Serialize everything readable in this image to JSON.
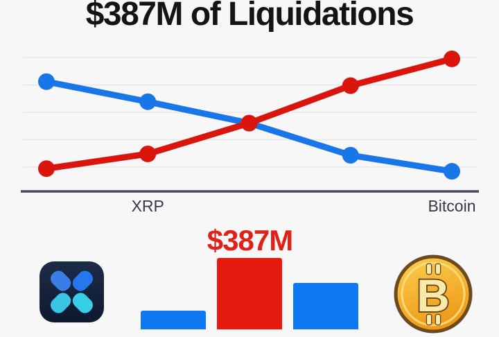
{
  "title": "$387M of Liquidations",
  "labels": {
    "x_axis_left": "XRP",
    "x_axis_right": "Bitcoin",
    "bar_value": "$387M"
  },
  "colors": {
    "background": "#f7f7f8",
    "title_text": "#141414",
    "grid_line": "#e7e7ea",
    "axis_line": "#414b59",
    "axis_label_text": "#333a45",
    "xrp_line": "#1876e8",
    "bitcoin_line": "#da150d",
    "bar_blue": "#0d78f2",
    "bar_red": "#e5190e",
    "value_label": "#e02117",
    "coin_gold_light": "#fbd04f",
    "coin_gold": "#ef9a18",
    "coin_outline": "#6b4a1e",
    "coin_inner_ring": "#f8df8a",
    "coin_symbol_fill": "#fbe9a8",
    "coin_symbol_outline": "#5f3f17",
    "app_icon_bg_top": "#1d2c47",
    "app_icon_bg_bottom": "#0d1930",
    "app_petal_top_left": "#3a7de6",
    "app_petal_top_right": "#2478ee",
    "app_petal_bottom_left": "#3cc3e8",
    "app_petal_bottom_right": "#36cfe6"
  },
  "chart_data": [
    {
      "type": "line",
      "title": "$387M of Liquidations",
      "categories": [
        "",
        "XRP",
        "",
        "",
        "Bitcoin"
      ],
      "series": [
        {
          "name": "XRP",
          "color_key": "xrp_line",
          "values": [
            82,
            67,
            51,
            27,
            15
          ]
        },
        {
          "name": "Bitcoin",
          "color_key": "bitcoin_line",
          "values": [
            17,
            28,
            51,
            79,
            99
          ]
        }
      ],
      "ylim": [
        0,
        100
      ],
      "grid": true,
      "gridline_count": 5,
      "legend": "none",
      "note": "y-axis unlabeled; values are relative 0-100 of plot height; lines cross at middle point"
    },
    {
      "type": "bar",
      "categories": [
        "left-blue",
        "center-red",
        "right-blue"
      ],
      "values_rel": [
        0.26,
        1.0,
        0.65
      ],
      "bar_colors": [
        "#0d78f2",
        "#e5190e",
        "#0d78f2"
      ],
      "data_labels": [
        "",
        "$387M",
        ""
      ],
      "note": "bars cropped by bottom edge; only center red bar is labeled"
    }
  ],
  "icons": {
    "left": "xaman-xrp-wallet-app-icon",
    "right": "bitcoin-coin-icon"
  }
}
